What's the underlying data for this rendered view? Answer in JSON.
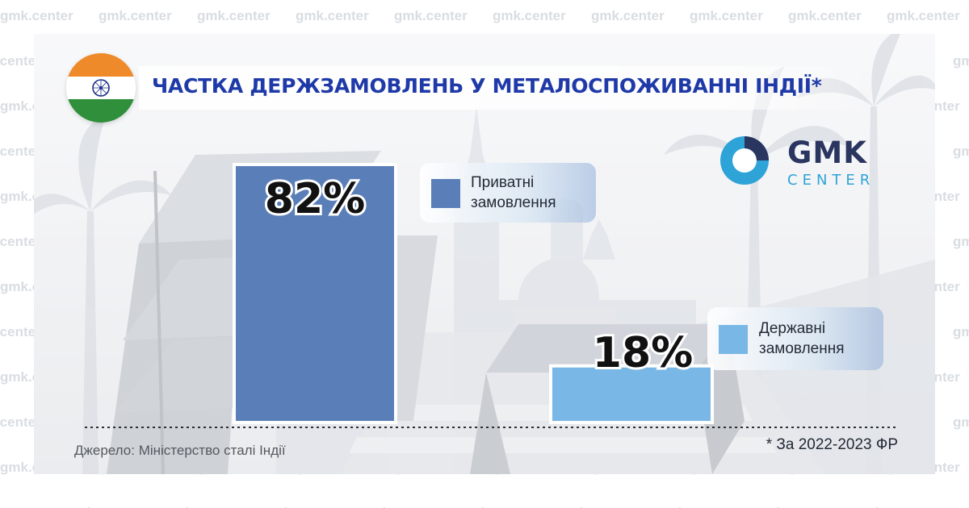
{
  "watermark": "gmk.center",
  "title": "ЧАСТКА ДЕРЖЗАМОВЛЕНЬ У МЕТАЛОСПОЖИВАННІ ІНДІЇ*",
  "logo": {
    "main": "GMK",
    "sub": "CENTER"
  },
  "colors": {
    "private": "#5a7fb8",
    "state": "#79b8e6",
    "title": "#1f3aa8"
  },
  "chart_data": {
    "type": "bar",
    "categories": [
      "Приватні\nзамовлення",
      "Державні\nзамовлення"
    ],
    "values": [
      82,
      18
    ],
    "value_labels": [
      "82%",
      "18%"
    ],
    "unit": "%",
    "ylim": [
      0,
      82
    ],
    "legend": [
      {
        "label": "Приватні\nзамовлення",
        "color": "#5a7fb8"
      },
      {
        "label": "Державні\nзамовлення",
        "color": "#79b8e6"
      }
    ]
  },
  "footer": {
    "source": "Джерело: Міністерство сталі Індії",
    "note": "* За 2022-2023 ФР"
  }
}
